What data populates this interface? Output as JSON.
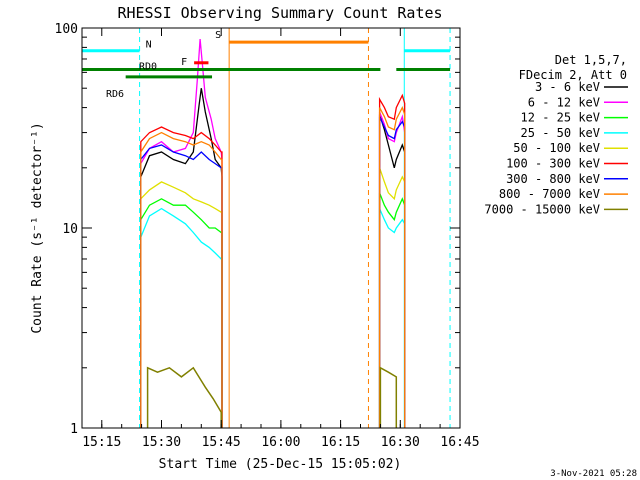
{
  "chart_data": {
    "type": "line",
    "title": "RHESSI Observing Summary Count Rates",
    "xlabel": "Start Time (25-Dec-15 15:05:02)",
    "ylabel": "Count Rate (s⁻¹ detector⁻¹)",
    "yscale": "log",
    "xlim_min": [
      5.03,
      100
    ],
    "ylim": [
      1,
      100
    ],
    "x_ticks": [
      {
        "min": 10,
        "label": "15:15"
      },
      {
        "min": 25,
        "label": "15:30"
      },
      {
        "min": 40,
        "label": "15:45"
      },
      {
        "min": 55,
        "label": "16:00"
      },
      {
        "min": 70,
        "label": "16:15"
      },
      {
        "min": 85,
        "label": "16:30"
      },
      {
        "min": 100,
        "label": "16:45"
      }
    ],
    "y_ticks": [
      {
        "v": 1,
        "label": "1"
      },
      {
        "v": 10,
        "label": "10"
      },
      {
        "v": 100,
        "label": "100"
      }
    ],
    "legend_position": "right",
    "legend_header": [
      "Det 1,5,7,",
      "FDecim 2, Att 0"
    ],
    "series": [
      {
        "name": "3 - 6 keV",
        "color": "#000000",
        "points": [
          [
            19.8,
            18
          ],
          [
            22,
            23
          ],
          [
            25,
            24
          ],
          [
            28,
            22
          ],
          [
            31,
            21
          ],
          [
            33,
            24
          ],
          [
            34.5,
            42
          ],
          [
            35,
            50
          ],
          [
            36,
            38
          ],
          [
            37.5,
            28
          ],
          [
            38.5,
            22
          ],
          [
            40,
            20
          ],
          [
            40.2,
            18
          ],
          [
            79.8,
            37
          ],
          [
            81,
            31
          ],
          [
            82,
            26
          ],
          [
            83.5,
            20
          ],
          [
            84,
            22
          ],
          [
            85.5,
            26
          ],
          [
            86.1,
            24
          ]
        ]
      },
      {
        "name": "6 - 12 keV",
        "color": "#ff00ff",
        "points": [
          [
            19.8,
            21
          ],
          [
            22,
            25
          ],
          [
            25,
            27
          ],
          [
            28,
            24
          ],
          [
            31,
            25
          ],
          [
            33,
            30
          ],
          [
            34,
            55
          ],
          [
            34.7,
            88
          ],
          [
            35.3,
            65
          ],
          [
            36,
            45
          ],
          [
            37.5,
            35
          ],
          [
            38.5,
            28
          ],
          [
            40,
            24
          ],
          [
            40.2,
            22
          ],
          [
            79.8,
            38
          ],
          [
            81,
            33
          ],
          [
            82,
            28
          ],
          [
            83.5,
            27
          ],
          [
            84,
            30
          ],
          [
            85.5,
            36
          ],
          [
            86.1,
            30
          ]
        ]
      },
      {
        "name": "12 - 25 keV",
        "color": "#00ff00",
        "points": [
          [
            19.8,
            11
          ],
          [
            22,
            13
          ],
          [
            25,
            14
          ],
          [
            28,
            13
          ],
          [
            31,
            13
          ],
          [
            33,
            12
          ],
          [
            35,
            11
          ],
          [
            37,
            10
          ],
          [
            38.5,
            10
          ],
          [
            40,
            9.5
          ],
          [
            40.2,
            9.5
          ],
          [
            79.8,
            15
          ],
          [
            81,
            13
          ],
          [
            82,
            12
          ],
          [
            83.5,
            11
          ],
          [
            84,
            12
          ],
          [
            85.5,
            14
          ],
          [
            86.1,
            13
          ]
        ]
      },
      {
        "name": "25 - 50 keV",
        "color": "#00ffff",
        "points": [
          [
            19.8,
            9
          ],
          [
            22,
            11.5
          ],
          [
            25,
            12.5
          ],
          [
            28,
            11.5
          ],
          [
            31,
            10.5
          ],
          [
            33,
            9.5
          ],
          [
            35,
            8.5
          ],
          [
            37,
            8
          ],
          [
            38.5,
            7.5
          ],
          [
            40,
            7
          ],
          [
            40.2,
            7
          ],
          [
            79.8,
            12.5
          ],
          [
            81,
            11
          ],
          [
            82,
            10
          ],
          [
            83.5,
            9.5
          ],
          [
            84,
            10
          ],
          [
            85.5,
            11
          ],
          [
            86.1,
            10.5
          ]
        ]
      },
      {
        "name": "50 - 100 keV",
        "color": "#e0e000",
        "points": [
          [
            19.8,
            14
          ],
          [
            22,
            15.5
          ],
          [
            25,
            17
          ],
          [
            28,
            16
          ],
          [
            31,
            15
          ],
          [
            33,
            14
          ],
          [
            35,
            13.5
          ],
          [
            37,
            13
          ],
          [
            38.5,
            12.5
          ],
          [
            40,
            12
          ],
          [
            40.2,
            12
          ],
          [
            79.8,
            20
          ],
          [
            81,
            17
          ],
          [
            82,
            15
          ],
          [
            83.5,
            14
          ],
          [
            84,
            15.5
          ],
          [
            85.5,
            18
          ],
          [
            86.1,
            17
          ]
        ]
      },
      {
        "name": "100 - 300 keV",
        "color": "#ff0000",
        "points": [
          [
            19.8,
            27
          ],
          [
            22,
            30
          ],
          [
            25,
            32
          ],
          [
            28,
            30
          ],
          [
            31,
            29
          ],
          [
            33,
            28
          ],
          [
            35,
            30
          ],
          [
            37,
            28
          ],
          [
            38.5,
            26
          ],
          [
            40,
            24
          ],
          [
            40.2,
            24
          ],
          [
            79.8,
            44
          ],
          [
            81,
            40
          ],
          [
            82,
            36
          ],
          [
            83.5,
            35
          ],
          [
            84,
            40
          ],
          [
            85.5,
            46
          ],
          [
            86.1,
            42
          ]
        ]
      },
      {
        "name": "300 - 800 keV",
        "color": "#0000ff",
        "points": [
          [
            19.8,
            22
          ],
          [
            22,
            25
          ],
          [
            25,
            26
          ],
          [
            28,
            24
          ],
          [
            31,
            23
          ],
          [
            33,
            22
          ],
          [
            35,
            24
          ],
          [
            37,
            22
          ],
          [
            38.5,
            21
          ],
          [
            40,
            20
          ],
          [
            40.2,
            20
          ],
          [
            79.8,
            36
          ],
          [
            81,
            32
          ],
          [
            82,
            29
          ],
          [
            83.5,
            28
          ],
          [
            84,
            31
          ],
          [
            85.5,
            34
          ],
          [
            86.1,
            32
          ]
        ]
      },
      {
        "name": "800 - 7000 keV",
        "color": "#ff8000",
        "points": [
          [
            19.8,
            24
          ],
          [
            22,
            28
          ],
          [
            25,
            30
          ],
          [
            28,
            28
          ],
          [
            31,
            27
          ],
          [
            33,
            26
          ],
          [
            35,
            27
          ],
          [
            37,
            26
          ],
          [
            38.5,
            24
          ],
          [
            40,
            22
          ],
          [
            40.2,
            22
          ],
          [
            79.8,
            40
          ],
          [
            81,
            36
          ],
          [
            82,
            32
          ],
          [
            83.5,
            31
          ],
          [
            84,
            35
          ],
          [
            85.5,
            40
          ],
          [
            86.1,
            37
          ]
        ]
      },
      {
        "name": "7000 - 15000 keV",
        "color": "#808000",
        "points": [
          [
            21.5,
            2
          ],
          [
            24,
            1.9
          ],
          [
            27,
            2
          ],
          [
            30,
            1.8
          ],
          [
            33,
            2
          ],
          [
            36,
            1.6
          ],
          [
            38,
            1.4
          ],
          [
            40,
            1.2
          ],
          [
            80,
            2
          ],
          [
            82,
            1.9
          ],
          [
            84,
            1.8
          ]
        ]
      }
    ],
    "flag_bars": [
      {
        "label": "N",
        "color": "#00ffff",
        "level": 77,
        "segments": [
          [
            5.03,
            19.5
          ],
          [
            86,
            97.5
          ]
        ]
      },
      {
        "label": "S",
        "color": "#ff8000",
        "level": 85,
        "segments": [
          [
            42,
            77
          ]
        ]
      },
      {
        "label": "F",
        "color": "#ff0000",
        "level": 67,
        "segments": [
          [
            33.2,
            36.8
          ]
        ]
      },
      {
        "label": "RD0",
        "color": "#008000",
        "level": 62,
        "segments": [
          [
            5.03,
            80
          ],
          [
            84,
            97.5
          ]
        ]
      },
      {
        "label": "RD6",
        "color": "#008000",
        "level": 57,
        "segments": [
          [
            16,
            37.7
          ]
        ]
      }
    ],
    "vlines": [
      {
        "min": 5.03,
        "color": "#00ffff",
        "style": "solid"
      },
      {
        "min": 19.5,
        "color": "#00ffff",
        "style": "dashed"
      },
      {
        "min": 42,
        "color": "#ff8000",
        "style": "solid"
      },
      {
        "min": 77,
        "color": "#ff8000",
        "style": "dashed"
      },
      {
        "min": 86,
        "color": "#00ffff",
        "style": "solid"
      },
      {
        "min": 97.5,
        "color": "#00ffff",
        "style": "dashed"
      }
    ],
    "footer_date": "3-Nov-2021 05:28"
  }
}
